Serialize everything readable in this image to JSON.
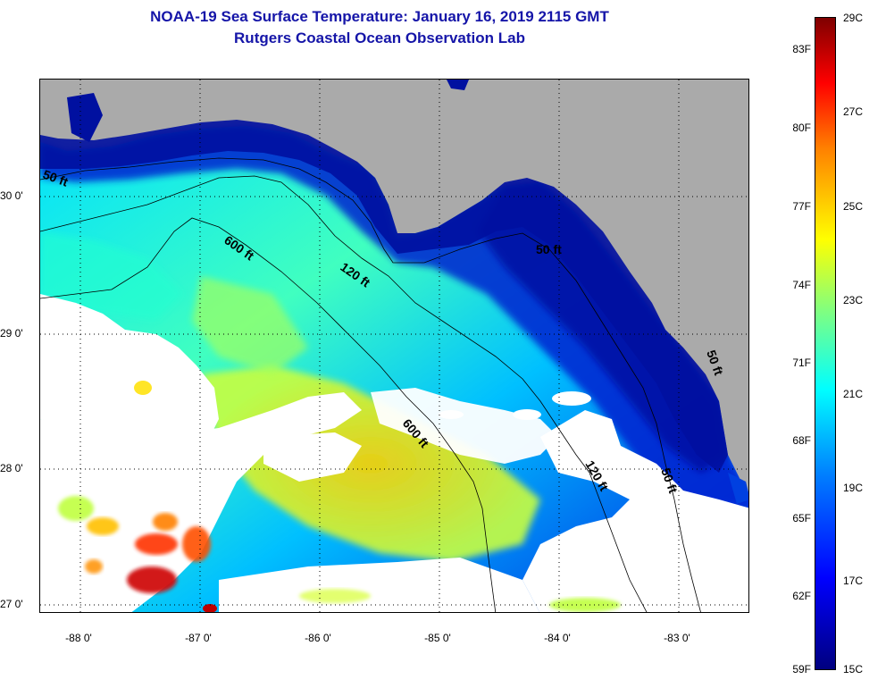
{
  "title_line1": "NOAA-19 Sea Surface Temperature:  January 16, 2019 2115 GMT",
  "title_line2": "Rutgers Coastal Ocean Observation Lab",
  "lat_labels": [
    "30 0'",
    "29 0'",
    "28 0'",
    "27 0'"
  ],
  "lon_labels": [
    "-88 0'",
    "-87 0'",
    "-86 0'",
    "-85 0'",
    "-84 0'",
    "-83 0'"
  ],
  "colorbar_f": [
    "83F",
    "80F",
    "77F",
    "74F",
    "71F",
    "68F",
    "65F",
    "62F",
    "59F"
  ],
  "colorbar_c": [
    "29C",
    "27C",
    "25C",
    "23C",
    "21C",
    "19C",
    "17C",
    "15C"
  ],
  "contour_labels": [
    "50 ft",
    "600 ft",
    "120 ft",
    "50 ft",
    "600 ft",
    "120 ft",
    "50 ft",
    "50 ft"
  ],
  "colors": {
    "land": "#aaaaaa",
    "cloud": "#ffffff",
    "title": "#1515a8"
  }
}
